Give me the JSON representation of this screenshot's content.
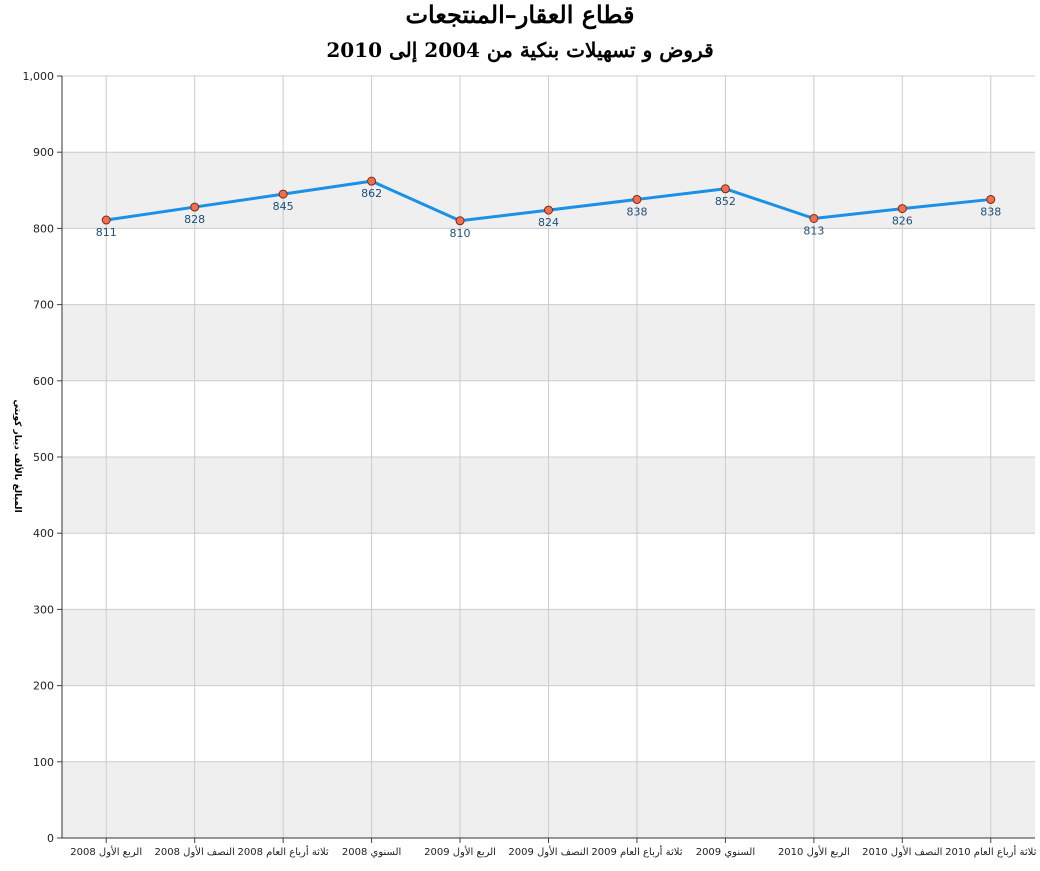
{
  "chart_data": {
    "type": "line",
    "title": "قطاع العقار–المنتجعات",
    "subtitle": "قروض و تسهيلات بنكية من 2004 إلى 2010",
    "ylabel": "المبالغ بالألف دينار كويتي",
    "xlabel": "",
    "ylim": [
      0,
      1000
    ],
    "y_ticks": [
      "0",
      "100",
      "200",
      "300",
      "400",
      "500",
      "600",
      "700",
      "800",
      "900",
      "1,000"
    ],
    "grid": true,
    "categories": [
      "الربع الأول 2008",
      "النصف الأول 2008",
      "ثلاثة أرباع العام 2008",
      "السنوي 2008",
      "الربع الأول 2009",
      "النصف الأول 2009",
      "ثلاثة أرباع العام 2009",
      "السنوي 2009",
      "الربع الأول 2010",
      "النصف الأول 2010",
      "ثلاثة أرباع العام 2010"
    ],
    "series": [
      {
        "values": [
          811,
          828,
          845,
          862,
          810,
          824,
          838,
          852,
          813,
          826,
          838
        ],
        "labels": [
          "811",
          "828",
          "845",
          "862",
          "810",
          "824",
          "838",
          "852",
          "813",
          "826",
          "838"
        ],
        "color": "#1a90e8",
        "marker_color": "#f0704e"
      }
    ],
    "band_color": "#efefef",
    "grid_color": "#cccccc"
  }
}
